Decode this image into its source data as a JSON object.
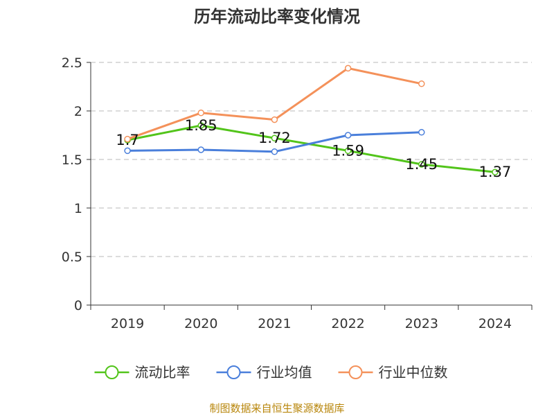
{
  "title": "历年流动比率变化情况",
  "source": "制图数据来自恒生聚源数据库",
  "chart_data": {
    "type": "line",
    "title": "历年流动比率变化情况",
    "categories": [
      "2019",
      "2020",
      "2021",
      "2022",
      "2023",
      "2024"
    ],
    "ylim": [
      0,
      2.5
    ],
    "yticks": [
      0,
      0.5,
      1,
      1.5,
      2,
      2.5
    ],
    "ytick_labels": [
      "0",
      "0.5",
      "1",
      "1.5",
      "2",
      "2.5"
    ],
    "grid": true,
    "legend_position": "bottom",
    "series": [
      {
        "name": "流动比率",
        "color": "#52c41a",
        "values": [
          1.7,
          1.85,
          1.72,
          1.59,
          1.45,
          1.37
        ],
        "data_labels": [
          "1.7",
          "1.85",
          "1.72",
          "1.59",
          "1.45",
          "1.37"
        ]
      },
      {
        "name": "行业均值",
        "color": "#4a7fdb",
        "values": [
          1.59,
          1.6,
          1.58,
          1.75,
          1.78,
          null
        ]
      },
      {
        "name": "行业中位数",
        "color": "#f4915a",
        "values": [
          1.71,
          1.98,
          1.91,
          2.44,
          2.28,
          null
        ]
      }
    ]
  }
}
